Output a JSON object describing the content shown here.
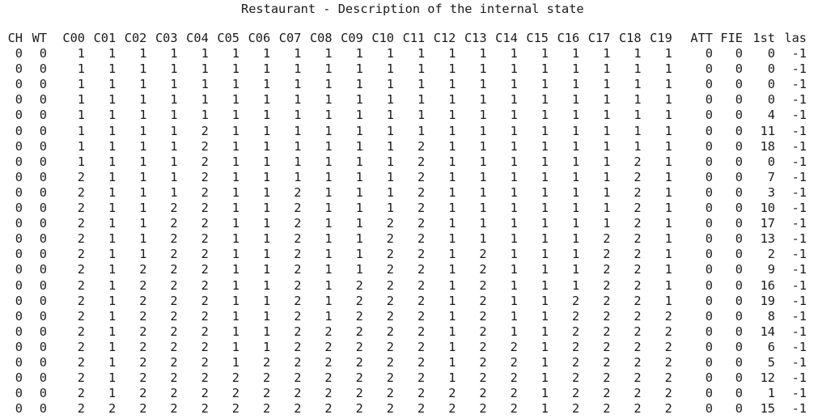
{
  "title": "Restaurant - Description of the internal state",
  "columns": [
    "CH",
    "WT",
    "C00",
    "C01",
    "C02",
    "C03",
    "C04",
    "C05",
    "C06",
    "C07",
    "C08",
    "C09",
    "C10",
    "C11",
    "C12",
    "C13",
    "C14",
    "C15",
    "C16",
    "C17",
    "C18",
    "C19",
    "ATT",
    "FIE",
    "1st",
    "las"
  ],
  "rows": [
    [
      "0",
      "0",
      "1",
      "1",
      "1",
      "1",
      "1",
      "1",
      "1",
      "1",
      "1",
      "1",
      "1",
      "1",
      "1",
      "1",
      "1",
      "1",
      "1",
      "1",
      "1",
      "1",
      "0",
      "0",
      "0",
      "-1"
    ],
    [
      "0",
      "0",
      "1",
      "1",
      "1",
      "1",
      "1",
      "1",
      "1",
      "1",
      "1",
      "1",
      "1",
      "1",
      "1",
      "1",
      "1",
      "1",
      "1",
      "1",
      "1",
      "1",
      "0",
      "0",
      "0",
      "-1"
    ],
    [
      "0",
      "0",
      "1",
      "1",
      "1",
      "1",
      "1",
      "1",
      "1",
      "1",
      "1",
      "1",
      "1",
      "1",
      "1",
      "1",
      "1",
      "1",
      "1",
      "1",
      "1",
      "1",
      "0",
      "0",
      "0",
      "-1"
    ],
    [
      "0",
      "0",
      "1",
      "1",
      "1",
      "1",
      "1",
      "1",
      "1",
      "1",
      "1",
      "1",
      "1",
      "1",
      "1",
      "1",
      "1",
      "1",
      "1",
      "1",
      "1",
      "1",
      "0",
      "0",
      "0",
      "-1"
    ],
    [
      "0",
      "0",
      "1",
      "1",
      "1",
      "1",
      "1",
      "1",
      "1",
      "1",
      "1",
      "1",
      "1",
      "1",
      "1",
      "1",
      "1",
      "1",
      "1",
      "1",
      "1",
      "1",
      "0",
      "0",
      "4",
      "-1"
    ],
    [
      "0",
      "0",
      "1",
      "1",
      "1",
      "1",
      "2",
      "1",
      "1",
      "1",
      "1",
      "1",
      "1",
      "1",
      "1",
      "1",
      "1",
      "1",
      "1",
      "1",
      "1",
      "1",
      "0",
      "0",
      "11",
      "-1"
    ],
    [
      "0",
      "0",
      "1",
      "1",
      "1",
      "1",
      "2",
      "1",
      "1",
      "1",
      "1",
      "1",
      "1",
      "2",
      "1",
      "1",
      "1",
      "1",
      "1",
      "1",
      "1",
      "1",
      "0",
      "0",
      "18",
      "-1"
    ],
    [
      "0",
      "0",
      "1",
      "1",
      "1",
      "1",
      "2",
      "1",
      "1",
      "1",
      "1",
      "1",
      "1",
      "2",
      "1",
      "1",
      "1",
      "1",
      "1",
      "1",
      "2",
      "1",
      "0",
      "0",
      "0",
      "-1"
    ],
    [
      "0",
      "0",
      "2",
      "1",
      "1",
      "1",
      "2",
      "1",
      "1",
      "1",
      "1",
      "1",
      "1",
      "2",
      "1",
      "1",
      "1",
      "1",
      "1",
      "1",
      "2",
      "1",
      "0",
      "0",
      "7",
      "-1"
    ],
    [
      "0",
      "0",
      "2",
      "1",
      "1",
      "1",
      "2",
      "1",
      "1",
      "2",
      "1",
      "1",
      "1",
      "2",
      "1",
      "1",
      "1",
      "1",
      "1",
      "1",
      "2",
      "1",
      "0",
      "0",
      "3",
      "-1"
    ],
    [
      "0",
      "0",
      "2",
      "1",
      "1",
      "2",
      "2",
      "1",
      "1",
      "2",
      "1",
      "1",
      "1",
      "2",
      "1",
      "1",
      "1",
      "1",
      "1",
      "1",
      "2",
      "1",
      "0",
      "0",
      "10",
      "-1"
    ],
    [
      "0",
      "0",
      "2",
      "1",
      "1",
      "2",
      "2",
      "1",
      "1",
      "2",
      "1",
      "1",
      "2",
      "2",
      "1",
      "1",
      "1",
      "1",
      "1",
      "1",
      "2",
      "1",
      "0",
      "0",
      "17",
      "-1"
    ],
    [
      "0",
      "0",
      "2",
      "1",
      "1",
      "2",
      "2",
      "1",
      "1",
      "2",
      "1",
      "1",
      "2",
      "2",
      "1",
      "1",
      "1",
      "1",
      "1",
      "2",
      "2",
      "1",
      "0",
      "0",
      "13",
      "-1"
    ],
    [
      "0",
      "0",
      "2",
      "1",
      "1",
      "2",
      "2",
      "1",
      "1",
      "2",
      "1",
      "1",
      "2",
      "2",
      "1",
      "2",
      "1",
      "1",
      "1",
      "2",
      "2",
      "1",
      "0",
      "0",
      "2",
      "-1"
    ],
    [
      "0",
      "0",
      "2",
      "1",
      "2",
      "2",
      "2",
      "1",
      "1",
      "2",
      "1",
      "1",
      "2",
      "2",
      "1",
      "2",
      "1",
      "1",
      "1",
      "2",
      "2",
      "1",
      "0",
      "0",
      "9",
      "-1"
    ],
    [
      "0",
      "0",
      "2",
      "1",
      "2",
      "2",
      "2",
      "1",
      "1",
      "2",
      "1",
      "2",
      "2",
      "2",
      "1",
      "2",
      "1",
      "1",
      "1",
      "2",
      "2",
      "1",
      "0",
      "0",
      "16",
      "-1"
    ],
    [
      "0",
      "0",
      "2",
      "1",
      "2",
      "2",
      "2",
      "1",
      "1",
      "2",
      "1",
      "2",
      "2",
      "2",
      "1",
      "2",
      "1",
      "1",
      "2",
      "2",
      "2",
      "1",
      "0",
      "0",
      "19",
      "-1"
    ],
    [
      "0",
      "0",
      "2",
      "1",
      "2",
      "2",
      "2",
      "1",
      "1",
      "2",
      "1",
      "2",
      "2",
      "2",
      "1",
      "2",
      "1",
      "1",
      "2",
      "2",
      "2",
      "2",
      "0",
      "0",
      "8",
      "-1"
    ],
    [
      "0",
      "0",
      "2",
      "1",
      "2",
      "2",
      "2",
      "1",
      "1",
      "2",
      "2",
      "2",
      "2",
      "2",
      "1",
      "2",
      "1",
      "1",
      "2",
      "2",
      "2",
      "2",
      "0",
      "0",
      "14",
      "-1"
    ],
    [
      "0",
      "0",
      "2",
      "1",
      "2",
      "2",
      "2",
      "1",
      "1",
      "2",
      "2",
      "2",
      "2",
      "2",
      "1",
      "2",
      "2",
      "1",
      "2",
      "2",
      "2",
      "2",
      "0",
      "0",
      "6",
      "-1"
    ],
    [
      "0",
      "0",
      "2",
      "1",
      "2",
      "2",
      "2",
      "1",
      "2",
      "2",
      "2",
      "2",
      "2",
      "2",
      "1",
      "2",
      "2",
      "1",
      "2",
      "2",
      "2",
      "2",
      "0",
      "0",
      "5",
      "-1"
    ],
    [
      "0",
      "0",
      "2",
      "1",
      "2",
      "2",
      "2",
      "2",
      "2",
      "2",
      "2",
      "2",
      "2",
      "2",
      "1",
      "2",
      "2",
      "1",
      "2",
      "2",
      "2",
      "2",
      "0",
      "0",
      "12",
      "-1"
    ],
    [
      "0",
      "0",
      "2",
      "1",
      "2",
      "2",
      "2",
      "2",
      "2",
      "2",
      "2",
      "2",
      "2",
      "2",
      "2",
      "2",
      "2",
      "1",
      "2",
      "2",
      "2",
      "2",
      "0",
      "0",
      "1",
      "-1"
    ],
    [
      "0",
      "0",
      "2",
      "2",
      "2",
      "2",
      "2",
      "2",
      "2",
      "2",
      "2",
      "2",
      "2",
      "2",
      "2",
      "2",
      "2",
      "1",
      "2",
      "2",
      "2",
      "2",
      "0",
      "0",
      "15",
      "-1"
    ]
  ]
}
